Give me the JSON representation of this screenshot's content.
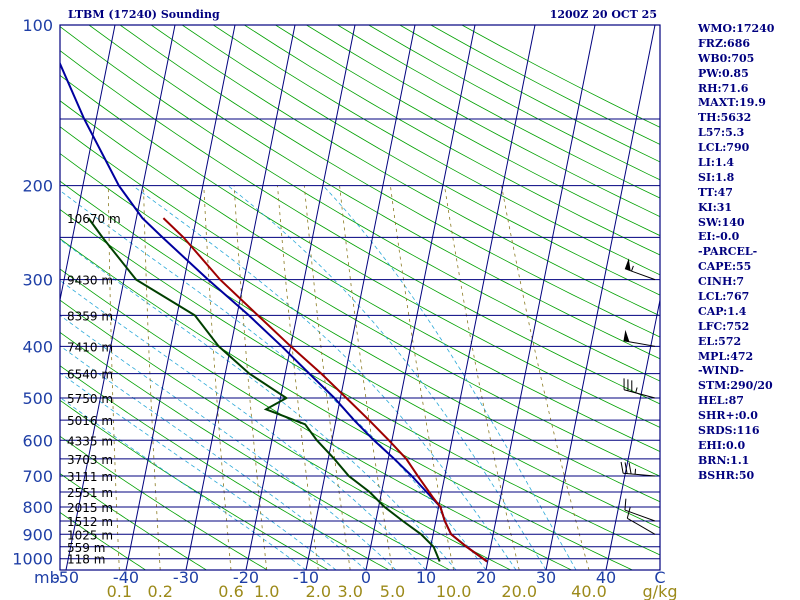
{
  "title_left": "LTBM (17240) Sounding",
  "title_right": "1200Z 20 OCT 25",
  "indices": [
    "WMO:17240",
    "FRZ:686",
    "WB0:705",
    "PW:0.85",
    "RH:71.6",
    "MAXT:19.9",
    "TH:5632",
    "L57:5.3",
    "LCL:790",
    "LI:1.4",
    "SI:1.8",
    "TT:47",
    "KI:31",
    "SW:140",
    "EI:-0.0",
    "-PARCEL-",
    "CAPE:55",
    "CINH:7",
    "LCL:767",
    "CAP:1.4",
    "LFC:752",
    "EL:572",
    "MPL:472",
    "-WIND-",
    "STM:290/20",
    "HEL:87",
    "SHR+:0.0",
    "SRDS:116",
    "EHI:0.0",
    "BRN:1.1",
    "BSHR:50"
  ],
  "colors": {
    "isobars": "#00007f",
    "isotherms": "#00007f",
    "dry_adiabats": "#00a000",
    "moist_adiabats": "#2aa8d8",
    "mixing_ratio": "#8a7a20",
    "temperature": "#00009f",
    "dewpoint": "#004000",
    "parcel": "#9f0000",
    "labels": "#1f3fa6"
  },
  "chart_data": {
    "type": "skew-t log-p sounding",
    "y_axis": {
      "label": "mb",
      "pressure_range_hpa": [
        1050,
        100
      ],
      "tick_labels": [
        "100",
        "200",
        "300",
        "400",
        "500",
        "600",
        "700",
        "800",
        "900",
        "1000"
      ]
    },
    "x_axis": {
      "temperature_range_c": [
        -50,
        50
      ],
      "tick_labels": [
        "-50",
        "-40",
        "-30",
        "-20",
        "-10",
        "0",
        "10",
        "20",
        "30",
        "40",
        "C"
      ]
    },
    "mixing_ratio_labels": [
      "0.1",
      "0.2",
      "0.6",
      "1.0",
      "2.0",
      "3.0",
      "5.0",
      "10.0",
      "20.0",
      "40.0",
      "g/kg"
    ],
    "mixing_ratio_values": [
      0.1,
      0.2,
      0.6,
      1.0,
      2.0,
      3.0,
      5.0,
      10.0,
      20.0,
      40.0
    ],
    "height_labels": [
      {
        "p": 230,
        "label": "10670 m"
      },
      {
        "p": 300,
        "label": "9430 m"
      },
      {
        "p": 350,
        "label": "8359 m"
      },
      {
        "p": 400,
        "label": "7410 m"
      },
      {
        "p": 450,
        "label": "6540 m"
      },
      {
        "p": 500,
        "label": "5750 m"
      },
      {
        "p": 550,
        "label": "5016 m"
      },
      {
        "p": 600,
        "label": "4335 m"
      },
      {
        "p": 650,
        "label": "3703 m"
      },
      {
        "p": 700,
        "label": "3111 m"
      },
      {
        "p": 750,
        "label": "2551 m"
      },
      {
        "p": 800,
        "label": "2015 m"
      },
      {
        "p": 850,
        "label": "1512 m"
      },
      {
        "p": 900,
        "label": "1025 m"
      },
      {
        "p": 950,
        "label": "559 m"
      },
      {
        "p": 1000,
        "label": "118 m"
      }
    ],
    "temperature": [
      {
        "p": 1012,
        "t": 19.9
      },
      {
        "p": 950,
        "t": 16.0
      },
      {
        "p": 900,
        "t": 13.0
      },
      {
        "p": 850,
        "t": 11.5
      },
      {
        "p": 800,
        "t": 10.3
      },
      {
        "p": 750,
        "t": 7.5
      },
      {
        "p": 700,
        "t": 4.5
      },
      {
        "p": 650,
        "t": 1.0
      },
      {
        "p": 600,
        "t": -3.0
      },
      {
        "p": 550,
        "t": -7.0
      },
      {
        "p": 500,
        "t": -11.0
      },
      {
        "p": 450,
        "t": -16.0
      },
      {
        "p": 400,
        "t": -21.5
      },
      {
        "p": 350,
        "t": -28.0
      },
      {
        "p": 300,
        "t": -36.0
      },
      {
        "p": 250,
        "t": -45.0
      },
      {
        "p": 230,
        "t": -49.0
      },
      {
        "p": 200,
        "t": -54.0
      },
      {
        "p": 150,
        "t": -62.0
      },
      {
        "p": 100,
        "t": -72.0
      }
    ],
    "dewpoint": [
      {
        "p": 1012,
        "t": 12.0
      },
      {
        "p": 950,
        "t": 10.5
      },
      {
        "p": 900,
        "t": 8.0
      },
      {
        "p": 850,
        "t": 4.5
      },
      {
        "p": 800,
        "t": 1.0
      },
      {
        "p": 750,
        "t": -2.0
      },
      {
        "p": 700,
        "t": -6.0
      },
      {
        "p": 650,
        "t": -9.0
      },
      {
        "p": 600,
        "t": -12.5
      },
      {
        "p": 560,
        "t": -15.0
      },
      {
        "p": 525,
        "t": -22.0
      },
      {
        "p": 500,
        "t": -19.0
      },
      {
        "p": 450,
        "t": -26.0
      },
      {
        "p": 400,
        "t": -32.0
      },
      {
        "p": 350,
        "t": -37.0
      },
      {
        "p": 300,
        "t": -48.0
      },
      {
        "p": 250,
        "t": -55.0
      },
      {
        "p": 230,
        "t": -58.0
      }
    ],
    "parcel": [
      {
        "p": 1012,
        "t": 19.9
      },
      {
        "p": 950,
        "t": 16.0
      },
      {
        "p": 900,
        "t": 13.0
      },
      {
        "p": 850,
        "t": 11.5
      },
      {
        "p": 800,
        "t": 10.3
      },
      {
        "p": 767,
        "t": 8.7
      },
      {
        "p": 752,
        "t": 8.0
      },
      {
        "p": 700,
        "t": 5.5
      },
      {
        "p": 650,
        "t": 3.0
      },
      {
        "p": 600,
        "t": -0.5
      },
      {
        "p": 550,
        "t": -4.5
      },
      {
        "p": 500,
        "t": -9.0
      },
      {
        "p": 450,
        "t": -14.0
      },
      {
        "p": 400,
        "t": -20.0
      },
      {
        "p": 350,
        "t": -26.5
      },
      {
        "p": 300,
        "t": -34.0
      },
      {
        "p": 250,
        "t": -41.5
      },
      {
        "p": 230,
        "t": -45.5
      }
    ],
    "wind_barbs": [
      {
        "p": 300,
        "dir": 290,
        "speed_kt": 55
      },
      {
        "p": 400,
        "dir": 280,
        "speed_kt": 50
      },
      {
        "p": 500,
        "dir": 285,
        "speed_kt": 35
      },
      {
        "p": 700,
        "dir": 275,
        "speed_kt": 35
      },
      {
        "p": 850,
        "dir": 290,
        "speed_kt": 10
      },
      {
        "p": 900,
        "dir": 300,
        "speed_kt": 10
      }
    ]
  }
}
